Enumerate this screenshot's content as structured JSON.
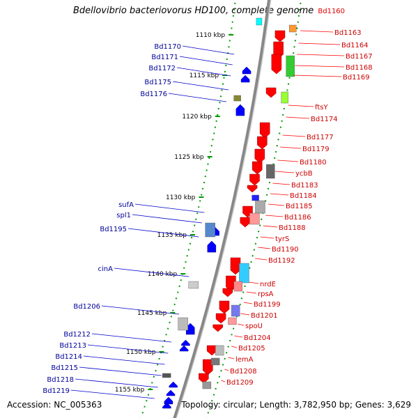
{
  "title": "Bdellovibrio bacteriovorus HD100, complete genome",
  "title_tag": "Bd1160",
  "accession": "Accession: NC_005363",
  "summary": "Topology: circular; Length: 3,782,950 bp; Genes: 3,629",
  "colors": {
    "forward": "#ff0000",
    "reverse": "#0000ff",
    "backbone": "#888888",
    "tick": "#009900"
  },
  "kbp_labels": [
    {
      "text": "1110 kbp",
      "kbp": 1110
    },
    {
      "text": "1115 kbp",
      "kbp": 1115
    },
    {
      "text": "1120 kbp",
      "kbp": 1120
    },
    {
      "text": "1125 kbp",
      "kbp": 1125
    },
    {
      "text": "1130 kbp",
      "kbp": 1130
    },
    {
      "text": "1135 kbp",
      "kbp": 1135
    },
    {
      "text": "1140 kbp",
      "kbp": 1140
    },
    {
      "text": "1145 kbp",
      "kbp": 1145
    },
    {
      "text": "1150 kbp",
      "kbp": 1150
    },
    {
      "text": "1155 kbp",
      "kbp": 1155
    }
  ],
  "right_labels": [
    "Bd1163",
    "Bd1164",
    "Bd1167",
    "Bd1168",
    "Bd1169",
    "ftsY",
    "Bd1174",
    "Bd1177",
    "Bd1179",
    "Bd1180",
    "ycbB",
    "Bd1183",
    "Bd1184",
    "Bd1185",
    "Bd1186",
    "Bd1188",
    "tyrS",
    "Bd1190",
    "Bd1192",
    "nrdE",
    "rpsA",
    "Bd1199",
    "Bd1201",
    "spoU",
    "Bd1204",
    "Bd1205",
    "lemA",
    "Bd1208",
    "Bd1209"
  ],
  "left_labels": [
    "Bd1170",
    "Bd1171",
    "Bd1172",
    "Bd1175",
    "Bd1176",
    "sufA",
    "spl1",
    "Bd1195",
    "cinA",
    "Bd1206",
    "Bd1212",
    "Bd1213",
    "Bd1214",
    "Bd1215",
    "Bd1218",
    "Bd1219"
  ]
}
